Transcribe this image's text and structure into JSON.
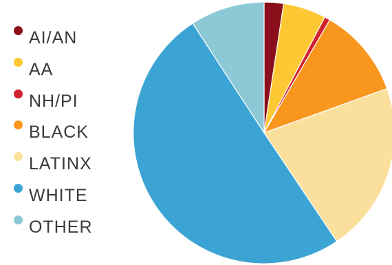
{
  "chart_data": {
    "type": "pie",
    "categories": [
      "AI/AN",
      "AA",
      "NH/PI",
      "BLACK",
      "LATINX",
      "WHITE",
      "OTHER"
    ],
    "values": [
      2.4,
      5.3,
      0.7,
      11.1,
      21.1,
      50.2,
      9.2
    ],
    "colors": [
      "#8b0f1a",
      "#fdc834",
      "#d2212e",
      "#f8961e",
      "#fbe09d",
      "#3ca4d4",
      "#8cc8d6"
    ],
    "start_angle": "top, clockwise",
    "legend_position": "left"
  }
}
